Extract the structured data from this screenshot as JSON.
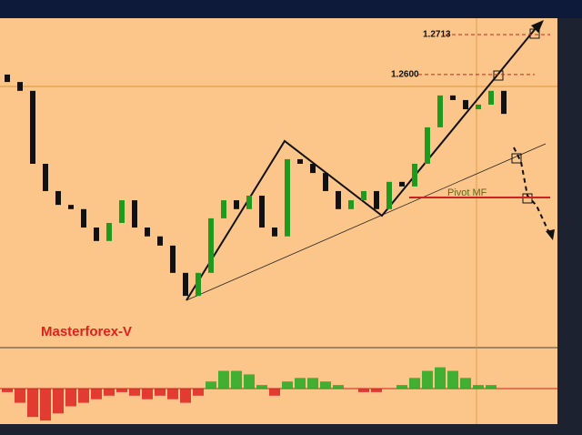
{
  "chart_data": {
    "type": "candlestick",
    "label": "Masterforex-V",
    "categories": [
      null,
      null,
      null,
      null,
      null,
      null,
      null,
      null,
      null,
      null,
      null,
      null,
      null,
      null,
      null,
      null,
      null,
      null,
      null,
      null,
      null,
      null,
      null,
      null,
      null,
      null,
      null,
      null,
      null,
      null,
      null,
      null,
      null,
      null,
      null,
      null,
      null,
      null,
      null,
      null
    ],
    "open": [
      1.26,
      1.2579,
      1.2554,
      1.2348,
      1.2271,
      1.2232,
      1.222,
      1.2168,
      1.213,
      1.2181,
      1.2245,
      1.2168,
      1.2143,
      1.2117,
      1.204,
      1.1975,
      1.204,
      1.2194,
      1.2245,
      1.222,
      1.2258,
      1.2168,
      1.2143,
      1.2361,
      1.2348,
      1.2322,
      1.2271,
      1.222,
      1.2245,
      1.2271,
      1.222,
      1.2297,
      1.2284,
      1.2348,
      1.2451,
      1.2541,
      1.2528,
      1.2502,
      1.2515,
      1.2554
    ],
    "close": [
      1.2579,
      1.2554,
      1.2348,
      1.2271,
      1.2232,
      1.222,
      1.2168,
      1.213,
      1.2181,
      1.2245,
      1.2168,
      1.2143,
      1.2117,
      1.204,
      1.1975,
      1.204,
      1.2194,
      1.2245,
      1.222,
      1.2258,
      1.2168,
      1.2143,
      1.2361,
      1.2348,
      1.2322,
      1.2271,
      1.222,
      1.2245,
      1.2271,
      1.222,
      1.2297,
      1.2284,
      1.2348,
      1.2451,
      1.2541,
      1.2528,
      1.2502,
      1.2515,
      1.2554,
      1.2489
    ],
    "up_color": "#1f9a1f",
    "down_color": "#111111",
    "ylim": [
      1.1834,
      1.2754
    ],
    "levels": [
      {
        "name": {
          "value": 1.2713,
          "label": "1.2713"
        },
        "color": "#cc2222",
        "dashed": true
      },
      {
        "name": {
          "value": 1.26,
          "label": "1.2600"
        },
        "color": "#cc2222",
        "dashed": true
      },
      {
        "name": {
          "value": 1.2253,
          "label": "Pivot MF"
        },
        "color": "#cc2222",
        "dashed": false
      }
    ],
    "oscillator": {
      "values": [
        -0.1,
        -0.4,
        -0.8,
        -0.9,
        -0.7,
        -0.5,
        -0.4,
        -0.3,
        -0.2,
        -0.1,
        -0.2,
        -0.3,
        -0.2,
        -0.3,
        -0.4,
        -0.2,
        0.2,
        0.5,
        0.5,
        0.4,
        0.1,
        -0.2,
        0.2,
        0.3,
        0.3,
        0.2,
        0.1,
        0.0,
        -0.1,
        -0.1,
        0.0,
        0.1,
        0.3,
        0.5,
        0.6,
        0.5,
        0.3,
        0.1,
        0.1,
        0.0
      ],
      "pos_color": "#22aa22",
      "neg_color": "#dd2222",
      "ylim": [
        -1,
        1
      ]
    }
  }
}
